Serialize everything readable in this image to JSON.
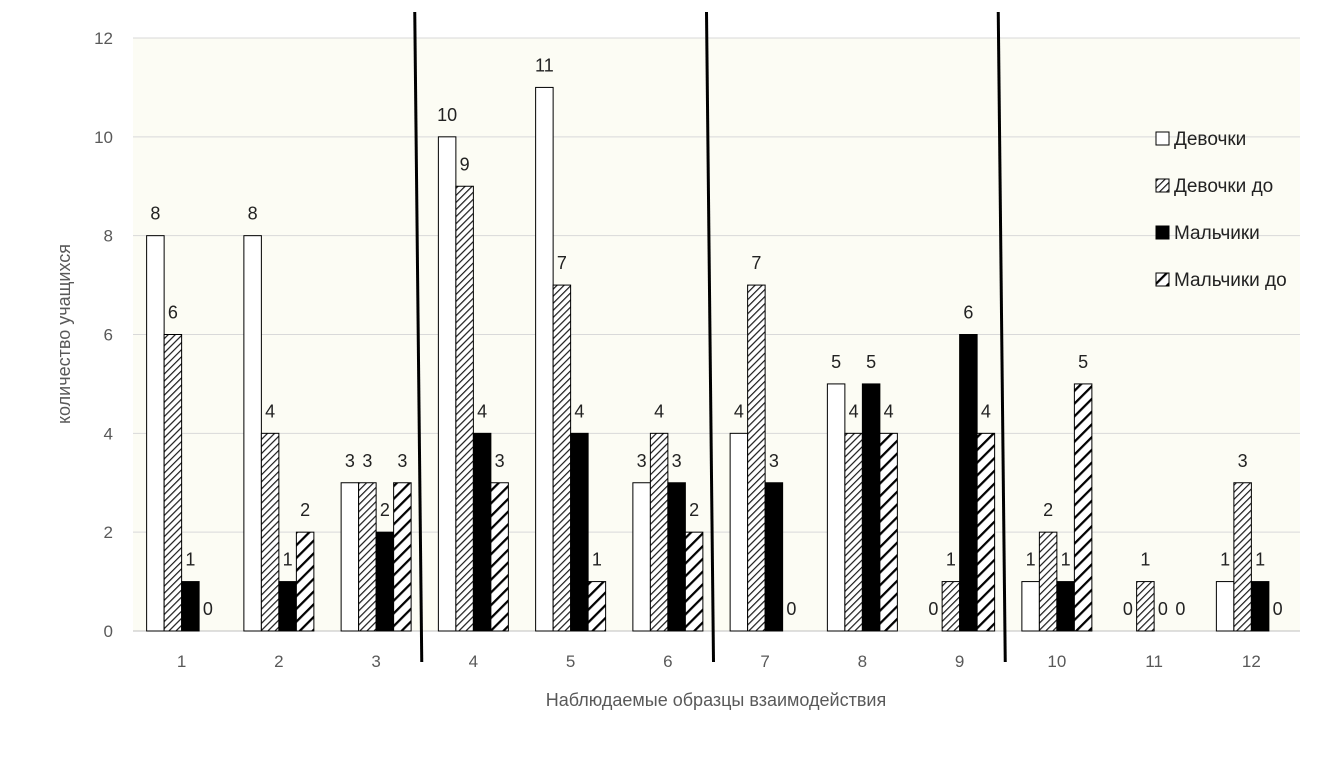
{
  "chart_data": {
    "type": "bar",
    "title": "",
    "xlabel": "Наблюдаемые образцы взаимодействия",
    "ylabel": "количество учащихся",
    "ylim": [
      0,
      12
    ],
    "yticks": [
      0,
      2,
      4,
      6,
      8,
      10,
      12
    ],
    "grid": true,
    "legend_position": "right",
    "categories": [
      "1",
      "2",
      "3",
      "4",
      "5",
      "6",
      "7",
      "8",
      "9",
      "10",
      "11",
      "12"
    ],
    "group_separators_after": [
      "3",
      "6",
      "9"
    ],
    "series": [
      {
        "name": "Девочки",
        "pattern": "white",
        "values": [
          8,
          8,
          3,
          10,
          11,
          3,
          4,
          5,
          0,
          1,
          0,
          1
        ]
      },
      {
        "name": "Девочки до",
        "pattern": "crosshatch",
        "values": [
          6,
          4,
          3,
          9,
          7,
          4,
          7,
          4,
          1,
          2,
          1,
          3
        ]
      },
      {
        "name": "Мальчики",
        "pattern": "black",
        "values": [
          1,
          1,
          2,
          4,
          4,
          3,
          3,
          5,
          6,
          1,
          0,
          1
        ]
      },
      {
        "name": "Мальчики до",
        "pattern": "diagonal",
        "values": [
          0,
          2,
          3,
          3,
          1,
          2,
          0,
          4,
          4,
          5,
          0,
          0
        ]
      }
    ]
  }
}
